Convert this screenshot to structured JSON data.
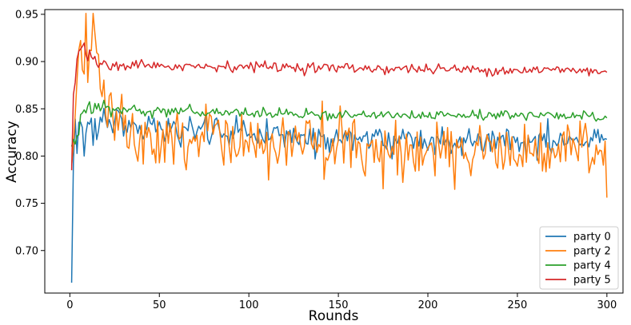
{
  "chart_data": {
    "type": "line",
    "title": "",
    "xlabel": "Rounds",
    "ylabel": "Accuracy",
    "xlim": [
      -14,
      309
    ],
    "ylim": [
      0.655,
      0.955
    ],
    "xticks": [
      0,
      50,
      100,
      150,
      200,
      250,
      300
    ],
    "xtick_labels": [
      "0",
      "50",
      "100",
      "150",
      "200",
      "250",
      "300"
    ],
    "yticks": [
      0.7,
      0.75,
      0.8,
      0.85,
      0.9,
      0.95
    ],
    "ytick_labels": [
      "0.70",
      "0.75",
      "0.80",
      "0.85",
      "0.90",
      "0.95"
    ],
    "grid": false,
    "legend_position": "bottom-right",
    "n_rounds": 300,
    "series": [
      {
        "name": "party 0",
        "color": "#1f77b4",
        "key_points": {
          "x": [
            1,
            2,
            3,
            4,
            6,
            8,
            10,
            13,
            16,
            20,
            24,
            28,
            32,
            36,
            40,
            45,
            50,
            60,
            70,
            80,
            90,
            100,
            120,
            150,
            180,
            200,
            230,
            260,
            290,
            300
          ],
          "y": [
            0.666,
            0.8,
            0.84,
            0.83,
            0.845,
            0.82,
            0.84,
            0.83,
            0.835,
            0.84,
            0.83,
            0.845,
            0.82,
            0.84,
            0.825,
            0.835,
            0.826,
            0.83,
            0.825,
            0.828,
            0.822,
            0.825,
            0.82,
            0.82,
            0.818,
            0.817,
            0.818,
            0.816,
            0.817,
            0.818
          ]
        },
        "noise": 0.012
      },
      {
        "name": "party 2",
        "color": "#ff7f0e",
        "key_points": {
          "x": [
            1,
            3,
            5,
            7,
            9,
            11,
            13,
            15,
            17,
            20,
            25,
            30,
            40,
            50,
            70,
            100,
            130,
            160,
            200,
            230,
            260,
            290,
            300
          ],
          "y": [
            0.79,
            0.86,
            0.92,
            0.89,
            0.93,
            0.9,
            0.94,
            0.91,
            0.87,
            0.85,
            0.83,
            0.84,
            0.82,
            0.82,
            0.82,
            0.81,
            0.81,
            0.81,
            0.805,
            0.805,
            0.805,
            0.81,
            0.79
          ]
        },
        "noise": 0.028,
        "last_value": 0.756
      },
      {
        "name": "party 4",
        "color": "#2ca02c",
        "key_points": {
          "x": [
            1,
            3,
            5,
            8,
            12,
            18,
            25,
            35,
            45,
            60,
            80,
            100,
            130,
            160,
            200,
            240,
            280,
            300
          ],
          "y": [
            0.81,
            0.82,
            0.83,
            0.845,
            0.85,
            0.852,
            0.848,
            0.85,
            0.847,
            0.847,
            0.846,
            0.845,
            0.845,
            0.844,
            0.844,
            0.843,
            0.843,
            0.84
          ]
        },
        "noise": 0.0045
      },
      {
        "name": "party 5",
        "color": "#d62728",
        "key_points": {
          "x": [
            1,
            2,
            4,
            6,
            8,
            10,
            14,
            18,
            25,
            35,
            50,
            70,
            100,
            130,
            160,
            200,
            240,
            280,
            300
          ],
          "y": [
            0.785,
            0.865,
            0.9,
            0.915,
            0.92,
            0.905,
            0.9,
            0.9,
            0.896,
            0.897,
            0.896,
            0.895,
            0.895,
            0.894,
            0.893,
            0.892,
            0.891,
            0.891,
            0.889
          ]
        },
        "noise": 0.0045
      }
    ]
  }
}
